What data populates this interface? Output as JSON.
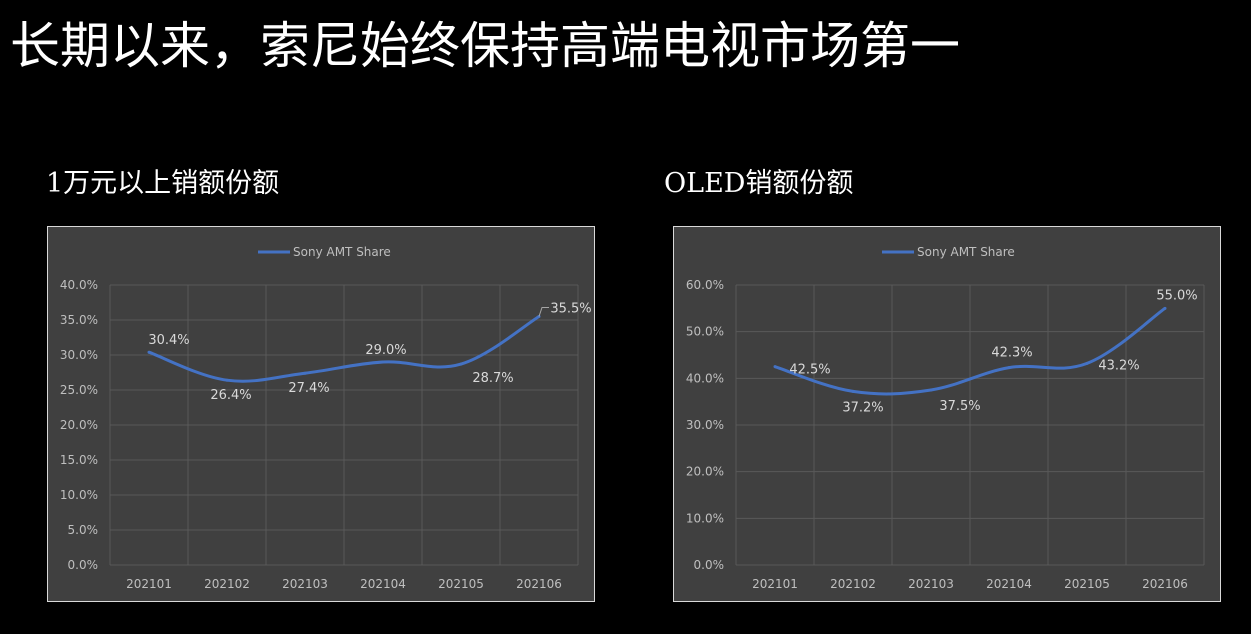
{
  "page": {
    "title": "长期以来，索尼始终保持高端电视市场第一"
  },
  "colors": {
    "background": "#000000",
    "panel": "#404040",
    "grid": "#595959",
    "series": "#4472c4",
    "tick_text": "#bfbfbf",
    "label_text": "#d9d9d9"
  },
  "chart_data": [
    {
      "type": "line",
      "title": "1万元以上销额份额",
      "categories": [
        "202101",
        "202102",
        "202103",
        "202104",
        "202105",
        "202106"
      ],
      "series": [
        {
          "name": "Sony AMT Share",
          "values": [
            30.4,
            26.4,
            27.4,
            29.0,
            28.7,
            35.5
          ],
          "labels": [
            "30.4%",
            "26.4%",
            "27.4%",
            "29.0%",
            "28.7%",
            "35.5%"
          ]
        }
      ],
      "ylim": [
        0,
        40
      ],
      "yticks": [
        "0.0%",
        "5.0%",
        "10.0%",
        "15.0%",
        "20.0%",
        "25.0%",
        "30.0%",
        "35.0%",
        "40.0%"
      ],
      "grid": true,
      "legend": "top-center"
    },
    {
      "type": "line",
      "title": "OLED销额份额",
      "categories": [
        "202101",
        "202102",
        "202103",
        "202104",
        "202105",
        "202106"
      ],
      "series": [
        {
          "name": "Sony AMT Share",
          "values": [
            42.5,
            37.2,
            37.5,
            42.3,
            43.2,
            55.0
          ],
          "labels": [
            "42.5%",
            "37.2%",
            "37.5%",
            "42.3%",
            "43.2%",
            "55.0%"
          ]
        }
      ],
      "ylim": [
        0,
        60
      ],
      "yticks": [
        "0.0%",
        "10.0%",
        "20.0%",
        "30.0%",
        "40.0%",
        "50.0%",
        "60.0%"
      ],
      "grid": true,
      "legend": "top-center"
    }
  ]
}
